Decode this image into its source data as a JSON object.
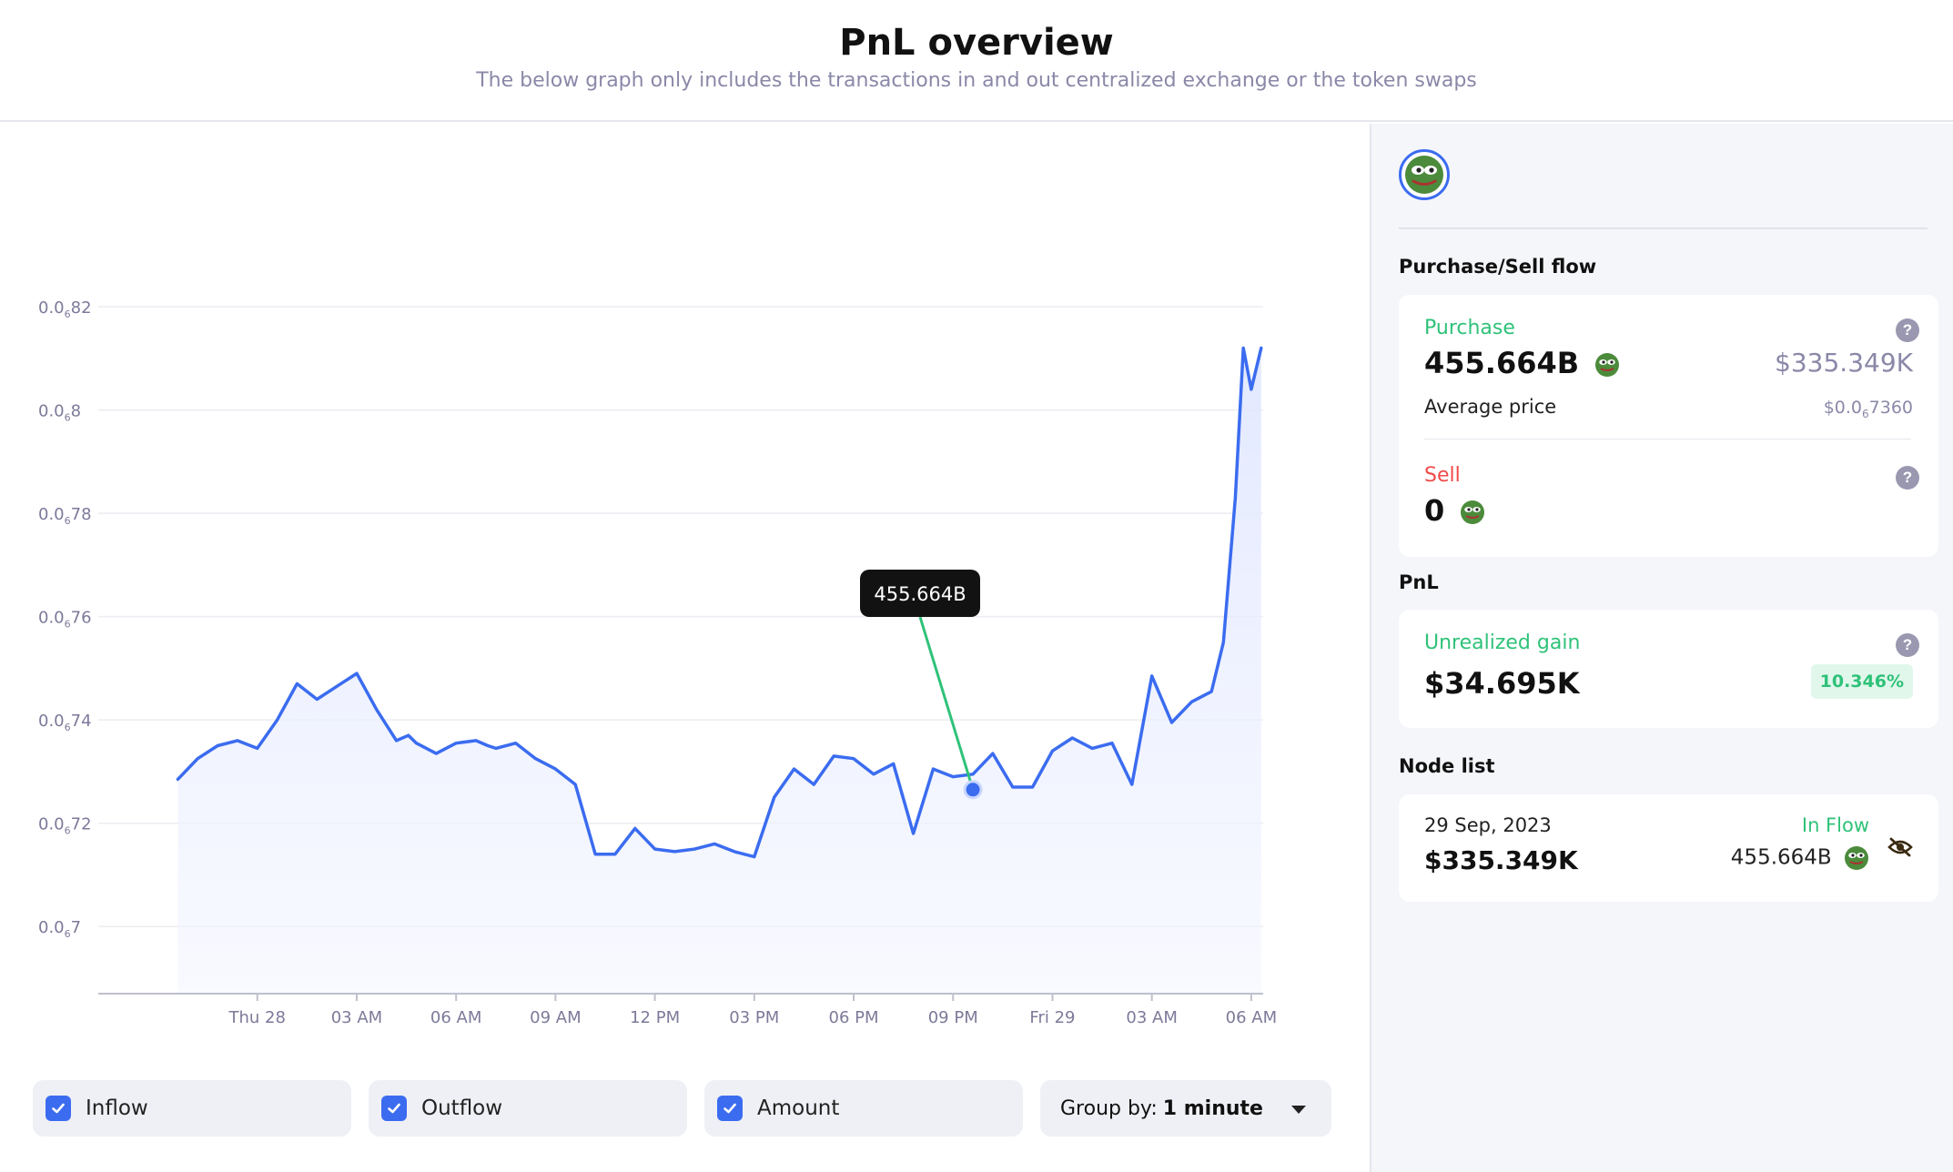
{
  "header": {
    "title": "PnL overview",
    "subtitle": "The below graph only includes the transactions in and out centralized exchange or the token swaps"
  },
  "chart_data": {
    "type": "area",
    "series": [
      {
        "color": "#3b6cf0",
        "x": [
          0,
          0.5,
          1,
          1.5,
          2,
          2.5,
          3,
          3.5,
          4,
          4.5,
          5,
          5.5,
          5.8,
          6,
          6.5,
          7,
          7.5,
          7.8,
          8,
          8.5,
          9,
          9.5,
          10,
          10.5,
          11,
          11.5,
          12,
          12.5,
          13,
          13.5,
          14,
          14.5,
          15,
          15.5,
          16,
          16.5,
          17,
          17.5,
          18,
          18.5,
          19,
          19.5,
          20,
          20.5,
          21,
          21.5,
          22,
          22.5,
          23,
          23.5,
          24,
          24.5,
          25,
          25.5,
          26,
          26.3,
          26.6,
          26.8,
          27,
          27.25
        ],
        "values": [
          0.7285,
          0.7325,
          0.735,
          0.736,
          0.7345,
          0.74,
          0.747,
          0.744,
          0.7465,
          0.749,
          0.742,
          0.736,
          0.737,
          0.7355,
          0.7335,
          0.7355,
          0.736,
          0.735,
          0.7345,
          0.7355,
          0.7325,
          0.7305,
          0.7275,
          0.714,
          0.714,
          0.719,
          0.715,
          0.7145,
          0.715,
          0.716,
          0.7145,
          0.7135,
          0.725,
          0.7305,
          0.7275,
          0.733,
          0.7325,
          0.7295,
          0.7315,
          0.718,
          0.7305,
          0.729,
          0.7295,
          0.7335,
          0.727,
          0.727,
          0.734,
          0.7365,
          0.7345,
          0.7355,
          0.7275,
          0.7485,
          0.7395,
          0.7435,
          0.7455,
          0.755,
          0.783,
          0.812,
          0.804,
          0.812
        ]
      }
    ],
    "x_tick_labels": [
      "Thu 28",
      "03 AM",
      "06 AM",
      "09 AM",
      "12 PM",
      "03 PM",
      "06 PM",
      "09 PM",
      "Fri 29",
      "03 AM",
      "06 AM"
    ],
    "x_ticks": [
      2,
      4.5,
      7,
      9.5,
      12,
      14.5,
      17,
      19.5,
      22,
      24.5,
      27
    ],
    "y_tick_labels": [
      {
        "value": 0.7,
        "main": "0.0",
        "sub": "6",
        "rest": "7"
      },
      {
        "value": 0.72,
        "main": "0.0",
        "sub": "6",
        "rest": "72"
      },
      {
        "value": 0.74,
        "main": "0.0",
        "sub": "6",
        "rest": "74"
      },
      {
        "value": 0.76,
        "main": "0.0",
        "sub": "6",
        "rest": "76"
      },
      {
        "value": 0.78,
        "main": "0.0",
        "sub": "6",
        "rest": "78"
      },
      {
        "value": 0.8,
        "main": "0.0",
        "sub": "6",
        "rest": "8"
      },
      {
        "value": 0.82,
        "main": "0.0",
        "sub": "6",
        "rest": "82"
      }
    ],
    "ylim": [
      0.687,
      0.829
    ],
    "xlim": [
      -2,
      27.3
    ],
    "grid": true,
    "marker": {
      "x": 20,
      "y": 0.7265
    },
    "tooltip": {
      "label": "455.664B"
    }
  },
  "controls": {
    "inflow": {
      "label": "Inflow",
      "checked": true
    },
    "outflow": {
      "label": "Outflow",
      "checked": true
    },
    "amount": {
      "label": "Amount",
      "checked": true
    },
    "group_by_prefix": "Group by:",
    "group_by_value": "1 minute"
  },
  "side": {
    "flow_title": "Purchase/Sell flow",
    "purchase_label": "Purchase",
    "purchase_amount": "455.664B",
    "purchase_usd": "$335.349K",
    "avg_price_label": "Average price",
    "avg_price_main": "$0.0",
    "avg_price_sub": "6",
    "avg_price_rest": "7360",
    "sell_label": "Sell",
    "sell_amount": "0",
    "pnl_title": "PnL",
    "unrealized_label": "Unrealized gain",
    "unrealized_value": "$34.695K",
    "unrealized_pct": "10.346%",
    "node_title": "Node list",
    "node_date": "29 Sep, 2023",
    "node_flow": "In Flow",
    "node_usd": "$335.349K",
    "node_amount": "455.664B",
    "help": "?"
  }
}
